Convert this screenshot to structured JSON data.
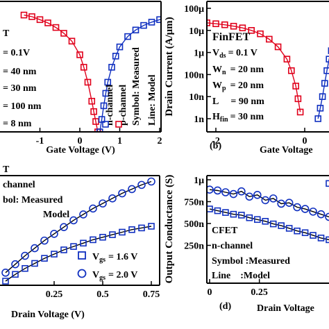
{
  "chart_data": [
    {
      "panel": "a",
      "type": "scatter",
      "xlabel": "Gate Voltage (V)",
      "ylabel": "",
      "x_ticks": [
        "-1",
        "0",
        "1",
        "2"
      ],
      "x_range": [
        -1.4,
        2.5
      ],
      "y_scale": "log",
      "y_range": [
        1e-09,
        0.0001
      ],
      "annotations": [
        "T",
        "= 0.1V",
        "= 40 nm",
        "= 30 nm",
        "= 100 nm",
        "= 8 nm"
      ],
      "legend": [
        "n-channel",
        "p-channel",
        "Symbol: Measured",
        "Line: Model"
      ],
      "series": [
        {
          "name": "p-channel",
          "color": "#e0001b",
          "marker": "square",
          "x": [
            -1.4,
            -1.2,
            -1.0,
            -0.8,
            -0.6,
            -0.4,
            -0.2,
            0.0,
            0.1,
            0.2,
            0.3,
            0.35,
            0.4,
            0.45
          ],
          "y": [
            3e-05,
            2.6e-05,
            2e-05,
            1.5e-05,
            1e-05,
            6e-06,
            3e-06,
            9e-07,
            3e-07,
            8e-08,
            1.5e-08,
            6e-09,
            2.5e-09,
            1e-09
          ]
        },
        {
          "name": "n-channel",
          "color": "#1030c0",
          "marker": "square",
          "x": [
            0.5,
            0.55,
            0.6,
            0.65,
            0.7,
            0.8,
            0.9,
            1.0,
            1.2,
            1.4,
            1.6,
            1.8,
            2.0,
            2.2,
            2.4
          ],
          "y": [
            1e-09,
            3e-09,
            1e-08,
            3e-08,
            8e-08,
            3e-07,
            8e-07,
            1.8e-06,
            4.5e-06,
            8e-06,
            1.2e-05,
            1.6e-05,
            2e-05,
            2.3e-05,
            2.6e-05
          ]
        }
      ]
    },
    {
      "panel": "b",
      "type": "scatter",
      "label": "(b)",
      "xlabel": "Gate Voltage",
      "ylabel": "Drain Current (A/μm)",
      "x_ticks": [
        "-2",
        "0"
      ],
      "x_range": [
        -3.0,
        0.6
      ],
      "y_ticks": [
        "100μ",
        "10μ",
        "1μ",
        "100n",
        "10n",
        "1n"
      ],
      "y_scale": "log",
      "y_range": [
        1e-09,
        0.0001
      ],
      "annotations": [
        "FinFET",
        "V",
        "ds",
        "= 0.1 V",
        "W",
        "n",
        "= 20 nm",
        "W",
        "p",
        "= 20 nm",
        "L",
        "= 90 nm",
        "H",
        "fin",
        "= 30 nm"
      ],
      "series": [
        {
          "name": "p-channel",
          "color": "#e0001b",
          "marker": "square",
          "x": [
            -3.0,
            -2.8,
            -2.6,
            -2.4,
            -2.2,
            -2.0,
            -1.8,
            -1.6,
            -1.4,
            -1.2,
            -1.0,
            -0.8,
            -0.6,
            -0.4,
            -0.3,
            -0.2,
            -0.15,
            -0.1
          ],
          "y": [
            3e-05,
            2.8e-05,
            2.6e-05,
            2.4e-05,
            2.2e-05,
            2e-05,
            1.8e-05,
            1.55e-05,
            1.3e-05,
            1e-05,
            7e-06,
            4e-06,
            1.8e-06,
            5e-07,
            1.5e-07,
            3e-08,
            8e-09,
            2e-09
          ]
        },
        {
          "name": "n-channel",
          "color": "#1030c0",
          "marker": "square",
          "x": [
            0.3,
            0.35,
            0.4,
            0.45,
            0.5,
            0.55,
            0.6
          ],
          "y": [
            1e-09,
            3e-09,
            1e-08,
            4e-08,
            1.5e-07,
            5e-07,
            1.2e-06
          ]
        }
      ]
    },
    {
      "panel": "c",
      "type": "line",
      "xlabel": "Drain Voltage (V)",
      "ylabel": "",
      "x_ticks": [
        "0.25",
        "0.5",
        "0.75"
      ],
      "x_range": [
        0.0,
        0.75
      ],
      "annotations": [
        "T",
        "channel",
        "bol: Measured",
        "Model"
      ],
      "legend": [
        "V",
        "gs",
        "= 1.6 V",
        "V",
        "gs",
        "= 2.0 V"
      ],
      "series": [
        {
          "name": "= 1.6 V",
          "marker": "square",
          "color": "#1030c0",
          "x": [
            0.0,
            0.05,
            0.1,
            0.15,
            0.2,
            0.25,
            0.3,
            0.35,
            0.4,
            0.45,
            0.5,
            0.55,
            0.6,
            0.65,
            0.7,
            0.75
          ],
          "y": [
            0.0,
            0.08,
            0.15,
            0.21,
            0.27,
            0.32,
            0.37,
            0.41,
            0.45,
            0.49,
            0.52,
            0.55,
            0.58,
            0.61,
            0.63,
            0.65
          ]
        },
        {
          "name": "= 2.0 V",
          "marker": "circle",
          "color": "#1030c0",
          "x": [
            0.0,
            0.05,
            0.1,
            0.15,
            0.2,
            0.25,
            0.3,
            0.35,
            0.4,
            0.45,
            0.5,
            0.55,
            0.6,
            0.65,
            0.7,
            0.75
          ],
          "y": [
            0.1,
            0.2,
            0.3,
            0.39,
            0.48,
            0.56,
            0.64,
            0.72,
            0.79,
            0.86,
            0.92,
            0.98,
            1.04,
            1.09,
            1.14,
            1.18
          ]
        }
      ]
    },
    {
      "panel": "d",
      "type": "line",
      "label": "(d)",
      "xlabel": "Drain Voltage",
      "ylabel": "Output Conductance (S)",
      "x_ticks": [
        "0",
        "0.25"
      ],
      "x_range": [
        0.0,
        0.6
      ],
      "y_ticks": [
        "1μ",
        "750n",
        "500n",
        "250n"
      ],
      "y_range": [
        1.5e-07,
        1e-06
      ],
      "annotations": [
        "CFET",
        "n-channel",
        "Symbol :Measured",
        "Line    :Model"
      ],
      "series": [
        {
          "name": "upper",
          "marker": "circle",
          "color": "#1030c0",
          "x": [
            0.0,
            0.04,
            0.08,
            0.12,
            0.16,
            0.2,
            0.24,
            0.28,
            0.32,
            0.36,
            0.4,
            0.44,
            0.48,
            0.52,
            0.56,
            0.6
          ],
          "y": [
            8.8e-07,
            8.7e-07,
            8.5e-07,
            8.3e-07,
            8.6e-07,
            8e-07,
            8.2e-07,
            7.6e-07,
            7.8e-07,
            7.2e-07,
            7.3e-07,
            6.8e-07,
            6.6e-07,
            6.3e-07,
            6e-07,
            5.7e-07
          ]
        },
        {
          "name": "lower",
          "marker": "square",
          "color": "#1030c0",
          "x": [
            0.0,
            0.04,
            0.08,
            0.12,
            0.16,
            0.2,
            0.24,
            0.28,
            0.32,
            0.36,
            0.4,
            0.44,
            0.48,
            0.52,
            0.56,
            0.6
          ],
          "y": [
            6.6e-07,
            6.4e-07,
            6.2e-07,
            6e-07,
            5.9e-07,
            5.6e-07,
            5.4e-07,
            5.2e-07,
            4.9e-07,
            4.7e-07,
            4.4e-07,
            4.1e-07,
            3.9e-07,
            3.6e-07,
            3.3e-07,
            3.1e-07
          ]
        },
        {
          "name": "",
          "marker": "square",
          "color": "#1030c0",
          "x": [
            0.6
          ],
          "y": [
            9.5e-07
          ]
        }
      ]
    }
  ]
}
